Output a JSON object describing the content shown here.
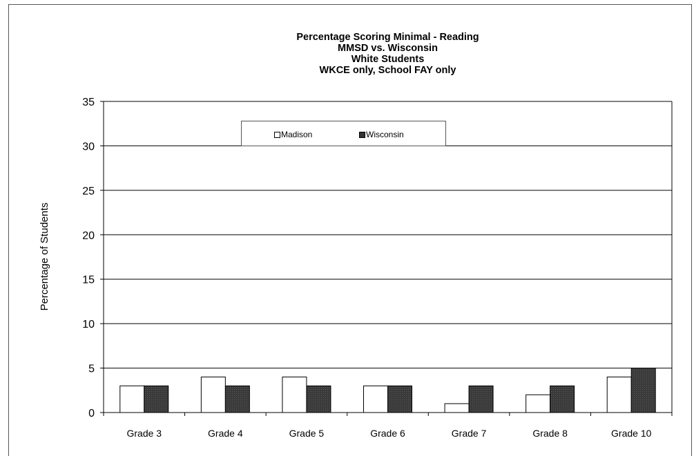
{
  "chart_data": {
    "type": "bar",
    "title_lines": [
      "Percentage Scoring Minimal - Reading",
      "MMSD vs. Wisconsin",
      "White Students",
      "WKCE only, School FAY only"
    ],
    "xlabel": "",
    "ylabel": "Percentage of Students",
    "ylim": [
      0,
      35
    ],
    "yticks": [
      0,
      5,
      10,
      15,
      20,
      25,
      30,
      35
    ],
    "grid": true,
    "legend_position": "top-center",
    "categories": [
      "Grade 3",
      "Grade 4",
      "Grade 5",
      "Grade 6",
      "Grade 7",
      "Grade 8",
      "Grade 10"
    ],
    "series": [
      {
        "name": "Madison",
        "color": "#ffffff",
        "values": [
          3,
          4,
          4,
          3,
          1,
          2,
          4
        ]
      },
      {
        "name": "Wisconsin",
        "color": "#333333",
        "values": [
          3,
          3,
          3,
          3,
          3,
          3,
          5
        ]
      }
    ]
  }
}
